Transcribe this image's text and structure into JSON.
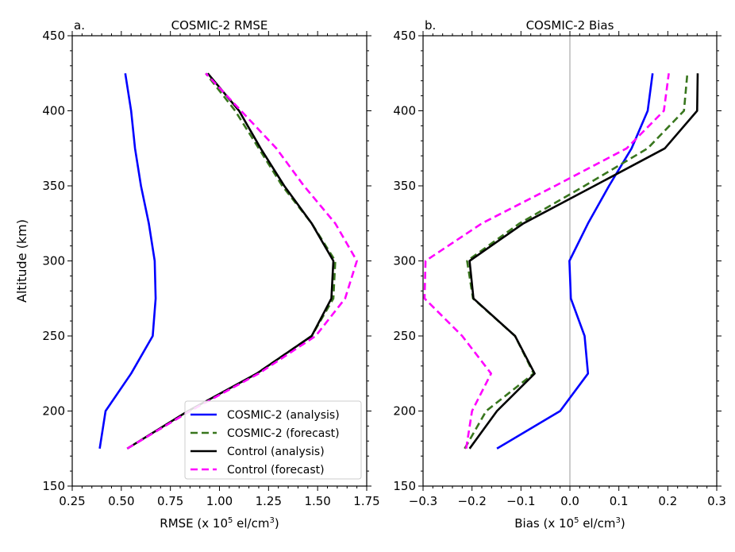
{
  "chart_data": [
    {
      "type": "line",
      "panel_label": "a.",
      "title": "COSMIC-2 RMSE",
      "xlabel": "RMSE (x 10",
      "xlabel_sup1": "5",
      "xlabel_mid": " el/cm",
      "xlabel_sup2": "3",
      "xlabel_end": ")",
      "ylabel": "Altitude (km)",
      "xlim": [
        0.25,
        1.75
      ],
      "ylim": [
        150,
        450
      ],
      "xticks": [
        "0.25",
        "0.50",
        "0.75",
        "1.00",
        "1.25",
        "1.50",
        "1.75"
      ],
      "yticks": [
        "150",
        "200",
        "250",
        "300",
        "350",
        "400",
        "450"
      ],
      "y": [
        175,
        200,
        225,
        250,
        275,
        300,
        325,
        350,
        375,
        400,
        425
      ],
      "legend_position": "lower-right",
      "series": [
        {
          "name": "COSMIC-2 (analysis)",
          "color": "#0000ff",
          "dash": "solid",
          "x": [
            0.39,
            0.42,
            0.55,
            0.66,
            0.675,
            0.67,
            0.64,
            0.6,
            0.57,
            0.55,
            0.52
          ]
        },
        {
          "name": "COSMIC-2 (forecast)",
          "color": "#38761d",
          "dash": "dashed",
          "x": [
            0.53,
            0.85,
            1.19,
            1.47,
            1.58,
            1.59,
            1.47,
            1.32,
            1.2,
            1.08,
            0.93
          ]
        },
        {
          "name": "Control (analysis)",
          "color": "#000000",
          "dash": "solid",
          "x": [
            0.53,
            0.84,
            1.19,
            1.47,
            1.57,
            1.58,
            1.47,
            1.33,
            1.21,
            1.1,
            0.94
          ]
        },
        {
          "name": "Control (forecast)",
          "color": "#ff00ff",
          "dash": "dashed",
          "x": [
            0.53,
            0.85,
            1.2,
            1.49,
            1.64,
            1.7,
            1.59,
            1.43,
            1.29,
            1.11,
            0.93
          ]
        }
      ]
    },
    {
      "type": "line",
      "panel_label": "b.",
      "title": "COSMIC-2 Bias",
      "xlabel": "Bias (x 10",
      "xlabel_sup1": "5",
      "xlabel_mid": " el/cm",
      "xlabel_sup2": "3",
      "xlabel_end": ")",
      "xlim": [
        -0.3,
        0.3
      ],
      "ylim": [
        150,
        450
      ],
      "xticks": [
        "−0.3",
        "−0.2",
        "−0.1",
        "0.0",
        "0.1",
        "0.2",
        "0.3"
      ],
      "yticks": [
        "150",
        "200",
        "250",
        "300",
        "350",
        "400",
        "450"
      ],
      "zero_line": true,
      "y": [
        175,
        200,
        225,
        250,
        275,
        300,
        325,
        350,
        375,
        400,
        425
      ],
      "series": [
        {
          "name": "COSMIC-2 (analysis)",
          "color": "#0000ff",
          "dash": "solid",
          "x": [
            -0.149,
            -0.02,
            0.037,
            0.03,
            0.002,
            -0.001,
            0.037,
            0.08,
            0.126,
            0.159,
            0.169
          ]
        },
        {
          "name": "COSMIC-2 (forecast)",
          "color": "#38761d",
          "dash": "dashed",
          "x": [
            -0.215,
            -0.171,
            -0.074,
            -0.112,
            -0.198,
            -0.21,
            -0.103,
            0.03,
            0.159,
            0.233,
            0.24
          ]
        },
        {
          "name": "Control (analysis)",
          "color": "#000000",
          "dash": "solid",
          "x": [
            -0.205,
            -0.149,
            -0.072,
            -0.112,
            -0.197,
            -0.205,
            -0.095,
            0.05,
            0.194,
            0.26,
            0.261
          ]
        },
        {
          "name": "Control (forecast)",
          "color": "#ff00ff",
          "dash": "dashed",
          "x": [
            -0.212,
            -0.2,
            -0.161,
            -0.22,
            -0.297,
            -0.295,
            -0.18,
            -0.03,
            0.116,
            0.192,
            0.202
          ]
        }
      ]
    }
  ]
}
